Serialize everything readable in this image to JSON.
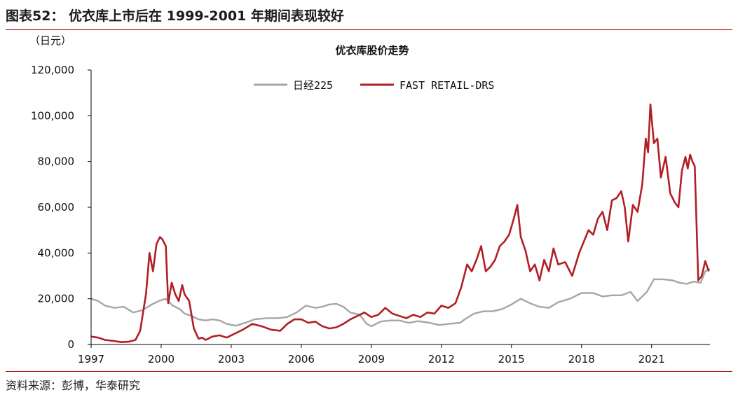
{
  "figure": {
    "title": "图表52： 优衣库上市后在 1999-2001 年期间表现较好",
    "source": "资料来源：彭博，华泰研究"
  },
  "colors": {
    "nikkei": "#a6a6a6",
    "fast_retail": "#b01f24",
    "accent_rule": "#b00000",
    "axis": "#000000"
  },
  "chart_data": {
    "type": "line",
    "title": "优衣库股价走势",
    "unit_label": "（日元）",
    "xlabel": "",
    "ylabel": "",
    "xlim": [
      1997.0,
      2023.5
    ],
    "ylim": [
      0,
      120000
    ],
    "x_ticks": [
      1997,
      2000,
      2003,
      2006,
      2009,
      2012,
      2015,
      2018,
      2021
    ],
    "x_tick_labels": [
      "1997",
      "2000",
      "2003",
      "2006",
      "2009",
      "2012",
      "2015",
      "2018",
      "2021"
    ],
    "y_ticks": [
      0,
      20000,
      40000,
      60000,
      80000,
      100000,
      120000
    ],
    "y_tick_labels": [
      "0",
      "20,000",
      "40,000",
      "60,000",
      "80,000",
      "100,000",
      "120,000"
    ],
    "grid": false,
    "legend_position": "top-center",
    "series": [
      {
        "name": "日经225",
        "color_key": "nikkei",
        "x": [
          1997.0,
          1997.3,
          1997.6,
          1998.0,
          1998.4,
          1998.8,
          1999.2,
          1999.6,
          1999.9,
          2000.2,
          2000.5,
          2000.8,
          2001.0,
          2001.3,
          2001.6,
          2001.9,
          2002.2,
          2002.5,
          2002.8,
          2003.2,
          2003.6,
          2004.0,
          2004.5,
          2005.0,
          2005.4,
          2005.8,
          2006.2,
          2006.6,
          2006.9,
          2007.2,
          2007.5,
          2007.8,
          2008.1,
          2008.5,
          2008.8,
          2009.0,
          2009.4,
          2009.8,
          2010.2,
          2010.6,
          2011.0,
          2011.5,
          2011.9,
          2012.3,
          2012.8,
          2013.0,
          2013.4,
          2013.8,
          2014.2,
          2014.6,
          2015.0,
          2015.4,
          2015.8,
          2016.2,
          2016.6,
          2017.0,
          2017.5,
          2018.0,
          2018.5,
          2018.9,
          2019.3,
          2019.7,
          2020.1,
          2020.4,
          2020.8,
          2021.1,
          2021.5,
          2021.9,
          2022.2,
          2022.5,
          2022.8,
          2023.1,
          2023.3,
          2023.5
        ],
        "values": [
          20000,
          19000,
          17000,
          16000,
          16500,
          14000,
          15000,
          17500,
          19000,
          20000,
          17000,
          15500,
          13500,
          12500,
          11000,
          10500,
          11000,
          10500,
          9000,
          8200,
          9500,
          11000,
          11500,
          11500,
          12000,
          14000,
          17000,
          16000,
          16500,
          17500,
          17800,
          16500,
          14000,
          13000,
          9000,
          8000,
          10000,
          10500,
          10500,
          9500,
          10200,
          9500,
          8500,
          9000,
          9500,
          11000,
          13500,
          14500,
          14500,
          15500,
          17500,
          20000,
          18000,
          16500,
          16000,
          18500,
          20000,
          22500,
          22500,
          21000,
          21500,
          21500,
          23000,
          19000,
          23000,
          28500,
          28500,
          28000,
          27000,
          26500,
          27500,
          27000,
          32000,
          33000
        ]
      },
      {
        "name": "FAST RETAIL-DRS",
        "color_key": "fast_retail",
        "x": [
          1997.0,
          1997.3,
          1997.6,
          1998.0,
          1998.3,
          1998.6,
          1998.9,
          1999.1,
          1999.35,
          1999.5,
          1999.65,
          1999.8,
          1999.95,
          2000.05,
          2000.2,
          2000.3,
          2000.45,
          2000.6,
          2000.75,
          2000.9,
          2001.0,
          2001.2,
          2001.4,
          2001.6,
          2001.75,
          2001.9,
          2002.2,
          2002.5,
          2002.8,
          2003.1,
          2003.5,
          2003.9,
          2004.3,
          2004.7,
          2005.1,
          2005.4,
          2005.7,
          2006.0,
          2006.3,
          2006.6,
          2006.9,
          2007.2,
          2007.5,
          2007.8,
          2008.1,
          2008.4,
          2008.7,
          2009.0,
          2009.3,
          2009.6,
          2009.9,
          2010.2,
          2010.5,
          2010.8,
          2011.1,
          2011.4,
          2011.7,
          2012.0,
          2012.3,
          2012.6,
          2012.85,
          2013.1,
          2013.3,
          2013.5,
          2013.7,
          2013.9,
          2014.1,
          2014.3,
          2014.5,
          2014.7,
          2014.9,
          2015.1,
          2015.25,
          2015.4,
          2015.6,
          2015.8,
          2016.0,
          2016.2,
          2016.4,
          2016.6,
          2016.8,
          2017.0,
          2017.3,
          2017.6,
          2017.9,
          2018.1,
          2018.3,
          2018.5,
          2018.7,
          2018.9,
          2019.1,
          2019.3,
          2019.5,
          2019.7,
          2019.85,
          2020.0,
          2020.2,
          2020.4,
          2020.6,
          2020.75,
          2020.85,
          2020.95,
          2021.1,
          2021.25,
          2021.4,
          2021.6,
          2021.8,
          2022.0,
          2022.15,
          2022.3,
          2022.45,
          2022.55,
          2022.65,
          2022.75,
          2022.85,
          2023.0,
          2023.15,
          2023.3,
          2023.45
        ],
        "values": [
          3500,
          3000,
          2000,
          1500,
          1000,
          1200,
          2000,
          6000,
          22000,
          40000,
          32000,
          44000,
          47000,
          46000,
          43000,
          18000,
          27000,
          22000,
          19000,
          26000,
          22000,
          19000,
          7000,
          2500,
          3000,
          2000,
          3500,
          4000,
          3000,
          4500,
          6500,
          9000,
          8000,
          6500,
          6000,
          9000,
          11000,
          11000,
          9500,
          10000,
          8000,
          7000,
          7500,
          9000,
          11000,
          12500,
          14000,
          12000,
          13000,
          16000,
          13500,
          12500,
          11500,
          13000,
          12000,
          14000,
          13500,
          17000,
          16000,
          18000,
          25000,
          35000,
          32000,
          37000,
          43000,
          32000,
          34000,
          37000,
          43000,
          45000,
          48000,
          55000,
          61000,
          47000,
          41000,
          32000,
          35000,
          28000,
          37000,
          32000,
          42000,
          35000,
          36000,
          30000,
          40000,
          45000,
          50000,
          48000,
          55000,
          58000,
          50000,
          63000,
          64000,
          67000,
          60000,
          45000,
          61000,
          58000,
          70000,
          90000,
          84000,
          105000,
          88000,
          90000,
          73000,
          82000,
          66000,
          62000,
          60000,
          76000,
          82000,
          77000,
          83000,
          80000,
          78000,
          28000,
          30000,
          36500,
          32000
        ]
      }
    ]
  }
}
